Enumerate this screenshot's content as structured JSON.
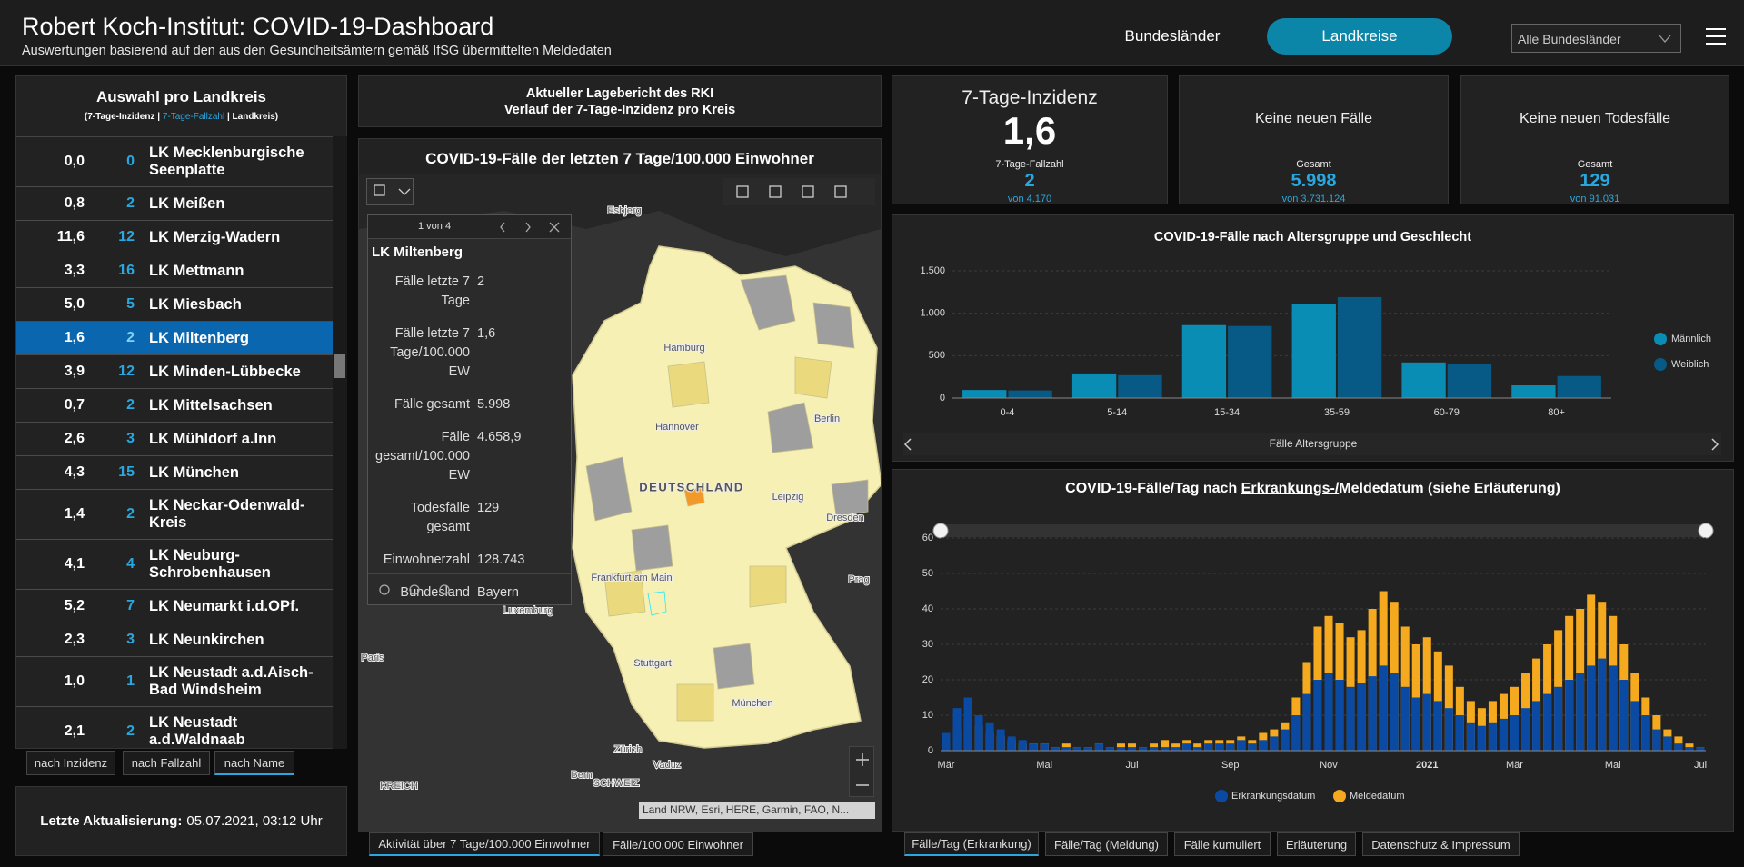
{
  "header": {
    "title": "Robert Koch-Institut: COVID-19-Dashboard",
    "subtitle": "Auswertungen basierend auf den aus den Gesundheitsämtern gemäß IfSG übermittelten Meldedaten",
    "tabs": [
      "Bundesländer",
      "Landkreise"
    ],
    "dropdown": "Alle Bundesländer"
  },
  "list_panel": {
    "title": "Auswahl pro Landkreis",
    "legend": [
      "(7-Tage-Inzidenz | ",
      "7-Tage-Fallzahl",
      " | Landkreis)"
    ],
    "rows": [
      {
        "incidence": "0,0",
        "cases": 0,
        "name": "LK Mecklenburgische Seenplatte"
      },
      {
        "incidence": "0,8",
        "cases": 2,
        "name": "LK Meißen"
      },
      {
        "incidence": "11,6",
        "cases": 12,
        "name": "LK Merzig-Wadern"
      },
      {
        "incidence": "3,3",
        "cases": 16,
        "name": "LK Mettmann"
      },
      {
        "incidence": "5,0",
        "cases": 5,
        "name": "LK Miesbach"
      },
      {
        "incidence": "1,6",
        "cases": 2,
        "name": "LK Miltenberg"
      },
      {
        "incidence": "3,9",
        "cases": 12,
        "name": "LK Minden-Lübbecke"
      },
      {
        "incidence": "0,7",
        "cases": 2,
        "name": "LK Mittelsachsen"
      },
      {
        "incidence": "2,6",
        "cases": 3,
        "name": "LK Mühldorf a.Inn"
      },
      {
        "incidence": "4,3",
        "cases": 15,
        "name": "LK München"
      },
      {
        "incidence": "1,4",
        "cases": 2,
        "name": "LK Neckar-Odenwald-Kreis"
      },
      {
        "incidence": "4,1",
        "cases": 4,
        "name": "LK Neuburg-Schrobenhausen"
      },
      {
        "incidence": "5,2",
        "cases": 7,
        "name": "LK Neumarkt i.d.OPf."
      },
      {
        "incidence": "2,3",
        "cases": 3,
        "name": "LK Neunkirchen"
      },
      {
        "incidence": "1,0",
        "cases": 1,
        "name": "LK Neustadt a.d.Aisch-Bad Windsheim"
      },
      {
        "incidence": "2,1",
        "cases": 2,
        "name": "LK Neustadt a.d.Waldnaab"
      }
    ],
    "sort_buttons": [
      "nach Inzidenz",
      "nach Fallzahl",
      "nach Name"
    ],
    "update_label": "Letzte Aktualisierung:",
    "update_value": "05.07.2021, 03:12 Uhr"
  },
  "report_box": {
    "lines": [
      "Aktueller Lagebericht des RKI",
      "Verlauf der 7-Tage-Inzidenz pro Kreis"
    ]
  },
  "map": {
    "title": "COVID-19-Fälle der letzten 7 Tage/100.000 Einwohner",
    "labels": [
      "Esbjerg",
      "Hamburg",
      "Hannover",
      "Berlin",
      "Leipzig",
      "Dresden",
      "DEUTSCHLAND",
      "Frankfurt am Main",
      "Luxemburg",
      "Stuttgart",
      "München",
      "Paris",
      "Prag",
      "Zürich",
      "Vaduz",
      "Bern",
      "SCHWEIZ",
      "KREICH"
    ],
    "attribution": "Land NRW, Esri, HERE, Garmin, FAO, N...",
    "popup": {
      "pager": "1 von 4",
      "title": "LK Miltenberg",
      "fields": [
        {
          "label": "Fälle letzte 7 Tage",
          "value": "2"
        },
        {
          "label": "Fälle letzte 7 Tage/100.000 EW",
          "value": "1,6"
        },
        {
          "label": "Fälle gesamt",
          "value": "5.998"
        },
        {
          "label": "Fälle gesamt/100.000 EW",
          "value": "4.658,9"
        },
        {
          "label": "Todesfälle gesamt",
          "value": "129"
        },
        {
          "label": "Einwohnerzahl",
          "value": "128.743"
        },
        {
          "label": "Bundesland",
          "value": "Bayern"
        }
      ]
    },
    "tabs": [
      "Aktivität über 7 Tage/100.000 Einwohner",
      "Fälle/100.000 Einwohner"
    ]
  },
  "kpis": [
    {
      "title": "7-Tage-Inzidenz",
      "value": "1,6",
      "sub_label": "7-Tage-Fallzahl",
      "sub_value": "2",
      "sub_total": "von 4.170"
    },
    {
      "title": "Keine neuen Fälle",
      "sub_label": "Gesamt",
      "sub_value": "5.998",
      "sub_total": "von 3.731.124"
    },
    {
      "title": "Keine neuen Todesfälle",
      "sub_label": "Gesamt",
      "sub_value": "129",
      "sub_total": "von 91.031"
    }
  ],
  "age_chart": {
    "type": "bar",
    "title": "COVID-19-Fälle nach Altersgruppe und Geschlecht",
    "x_label": "Fälle Altersgruppe",
    "categories": [
      "0-4",
      "5-14",
      "15-34",
      "35-59",
      "60-79",
      "80+"
    ],
    "series": [
      {
        "name": "Männlich",
        "color": "#0a8db5",
        "values": [
          95,
          290,
          860,
          1110,
          420,
          150
        ]
      },
      {
        "name": "Weiblich",
        "color": "#075a85",
        "values": [
          90,
          270,
          850,
          1190,
          400,
          260
        ]
      }
    ],
    "ylim": [
      0,
      1500
    ],
    "yticks": [
      0,
      500,
      {
        "value": 1000,
        "label": "1.000"
      },
      {
        "value": 1500,
        "label": "1.500"
      }
    ],
    "grid": true
  },
  "daily_chart": {
    "type": "bar",
    "title_parts": [
      "COVID-19-Fälle/Tag nach",
      "Erkrankungs-/",
      "Meldedatum (siehe Erläuterung)"
    ],
    "categories": [
      "Mär",
      null,
      null,
      null,
      null,
      null,
      null,
      null,
      null,
      "Mai",
      null,
      null,
      null,
      null,
      null,
      null,
      null,
      "Jul",
      null,
      null,
      null,
      null,
      null,
      null,
      null,
      null,
      "Sep",
      null,
      null,
      null,
      null,
      null,
      null,
      null,
      null,
      "Nov",
      null,
      null,
      null,
      null,
      null,
      null,
      null,
      null,
      "2021",
      null,
      null,
      null,
      null,
      null,
      null,
      null,
      "Mär",
      null,
      null,
      null,
      null,
      null,
      null,
      null,
      null,
      "Mai",
      null,
      null,
      null,
      null,
      null,
      null,
      null,
      "Jul"
    ],
    "series": [
      {
        "name": "Meldedatum",
        "color": "#f5a91f",
        "values": [
          3,
          6,
          9,
          7,
          5,
          4,
          3,
          2,
          2,
          2,
          1,
          2,
          1,
          1,
          2,
          1,
          2,
          2,
          1,
          2,
          3,
          2,
          3,
          2,
          3,
          3,
          3,
          4,
          3,
          5,
          6,
          8,
          15,
          25,
          35,
          38,
          36,
          32,
          34,
          40,
          45,
          42,
          35,
          30,
          32,
          28,
          24,
          18,
          14,
          12,
          14,
          16,
          18,
          22,
          26,
          30,
          34,
          38,
          40,
          44,
          42,
          38,
          30,
          22,
          15,
          10,
          6,
          4,
          2,
          1
        ]
      },
      {
        "name": "Erkrankungsdatum",
        "color": "#0b4aa2",
        "values": [
          5,
          12,
          15,
          10,
          8,
          6,
          4,
          3,
          2,
          2,
          1,
          1,
          1,
          1,
          2,
          1,
          1,
          1,
          1,
          1,
          1,
          1,
          2,
          1,
          2,
          2,
          2,
          3,
          2,
          3,
          4,
          6,
          10,
          16,
          20,
          22,
          20,
          18,
          19,
          21,
          24,
          22,
          18,
          15,
          16,
          14,
          12,
          10,
          8,
          7,
          8,
          9,
          10,
          12,
          14,
          16,
          18,
          20,
          22,
          24,
          26,
          24,
          20,
          14,
          10,
          6,
          4,
          2,
          1,
          1
        ]
      }
    ],
    "ylim": [
      0,
      60
    ],
    "yticks": [
      0,
      10,
      20,
      30,
      40,
      50,
      60
    ],
    "grid": true
  },
  "bottom_tabs": [
    "Fälle/Tag (Erkrankung)",
    "Fälle/Tag (Meldung)",
    "Fälle kumuliert",
    "Erläuterung",
    "Datenschutz & Impressum"
  ]
}
